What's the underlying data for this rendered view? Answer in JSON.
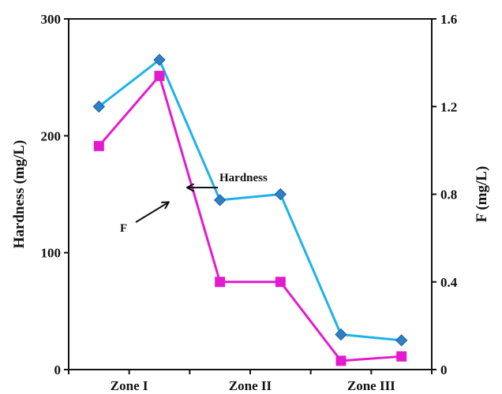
{
  "chart_data": {
    "type": "line",
    "categories": [
      "Zone I",
      "Zone II",
      "Zone III"
    ],
    "x": [
      1,
      2,
      3,
      4,
      5,
      6
    ],
    "x_ticks": [
      {
        "at": 1.5,
        "label": "Zone I"
      },
      {
        "at": 3.5,
        "label": "Zone II"
      },
      {
        "at": 5.5,
        "label": "Zone III"
      }
    ],
    "series": [
      {
        "name": "Hardness",
        "axis": "left",
        "color": "#1fb2e8",
        "marker": "diamond",
        "marker_color": "#2f7fc4",
        "values": [
          225,
          265,
          145,
          150,
          30,
          25
        ]
      },
      {
        "name": "F",
        "axis": "right",
        "color": "#e21ccc",
        "marker": "square",
        "marker_color": "#e21ccc",
        "values": [
          1.02,
          1.34,
          0.4,
          0.4,
          0.04,
          0.06
        ]
      }
    ],
    "ylabel": "Hardness (mg/L)",
    "ylim": [
      0,
      300
    ],
    "yticks": [
      "0",
      "100",
      "200",
      "300"
    ],
    "y2label": "F (mg/L)",
    "y2lim": [
      0,
      1.6
    ],
    "y2ticks": [
      "0",
      "0.4",
      "0.8",
      "1.2",
      "1.6"
    ],
    "grid": false,
    "annotations": [
      {
        "text": "Hardness",
        "arrow_to": "Hardness"
      },
      {
        "text": "F",
        "arrow_to": "F"
      }
    ]
  }
}
